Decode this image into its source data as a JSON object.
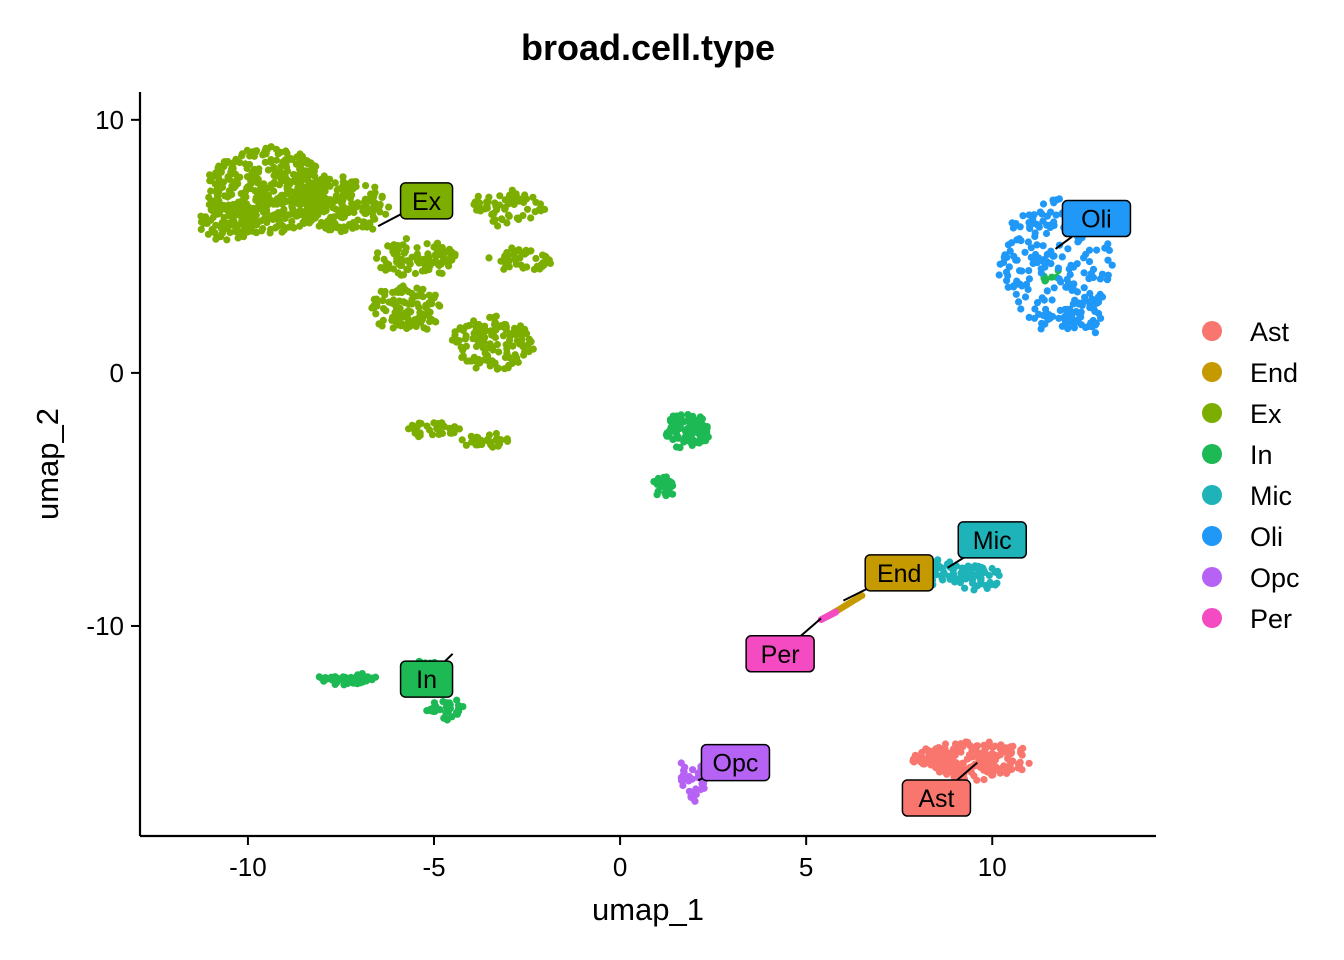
{
  "chart_data": {
    "type": "scatter",
    "title": "broad.cell.type",
    "xlabel": "umap_1",
    "ylabel": "umap_2",
    "xlim": [
      -12.9,
      14.4
    ],
    "ylim": [
      -18.3,
      11.1
    ],
    "x_ticks": [
      -10,
      -5,
      0,
      5,
      10
    ],
    "x_tick_labels": [
      "-10",
      "-5",
      "0",
      "5",
      "10"
    ],
    "y_ticks": [
      10,
      0,
      -10
    ],
    "y_tick_labels": [
      "10",
      "0",
      "-10"
    ],
    "grid": false,
    "legend_position": "right",
    "series": [
      {
        "name": "Ast",
        "color": "#F8766D",
        "label_pos": [
          8.5,
          -16.8
        ],
        "label_anchor": [
          9.6,
          -15.4
        ],
        "blobs": [
          [
            9.6,
            -15.3,
            1.4,
            0.75,
            1.0
          ],
          [
            8.4,
            -15.2,
            0.6,
            0.4,
            0.3
          ]
        ]
      },
      {
        "name": "End",
        "color": "#C49A00",
        "label_pos": [
          7.5,
          -7.9
        ],
        "label_anchor": [
          6.0,
          -9.0
        ],
        "blobs": [],
        "line": [
          [
            5.6,
            -9.6
          ],
          [
            6.5,
            -8.8
          ]
        ]
      },
      {
        "name": "Ex",
        "color": "#53B400",
        "label_pos": [
          -5.2,
          6.8
        ],
        "label_anchor": [
          -6.5,
          5.8
        ],
        "blobs": [
          [
            -9.5,
            7.2,
            1.6,
            1.7,
            2.4
          ],
          [
            -7.5,
            6.6,
            1.3,
            1.1,
            1.2
          ],
          [
            -10.5,
            6.0,
            0.8,
            0.8,
            0.5
          ],
          [
            -5.5,
            4.5,
            1.1,
            0.7,
            0.6
          ],
          [
            -5.8,
            2.5,
            1.0,
            0.9,
            0.7
          ],
          [
            -3.4,
            1.2,
            1.1,
            1.1,
            0.8
          ],
          [
            -3.0,
            6.5,
            1.0,
            0.6,
            0.4
          ],
          [
            -2.7,
            4.5,
            0.9,
            0.4,
            0.3
          ],
          [
            -5.0,
            -2.2,
            0.7,
            0.3,
            0.2
          ],
          [
            -3.6,
            -2.7,
            0.6,
            0.3,
            0.2
          ]
        ]
      },
      {
        "name": "In",
        "color": "#00C094",
        "label_pos": [
          -5.2,
          -12.1
        ],
        "label_anchor": [
          -4.5,
          -11.1
        ],
        "blobs": [
          [
            1.8,
            -2.3,
            0.6,
            0.7,
            0.6
          ],
          [
            1.2,
            -4.5,
            0.3,
            0.4,
            0.2
          ],
          [
            -7.3,
            -12.1,
            0.8,
            0.18,
            0.3
          ],
          [
            -5.3,
            -11.8,
            0.5,
            0.45,
            0.3
          ],
          [
            -4.7,
            -13.3,
            0.5,
            0.35,
            0.2
          ],
          [
            11.8,
            3.6,
            0.5,
            0.5,
            0.05
          ]
        ]
      },
      {
        "name": "Mic",
        "color": "#00B6EB",
        "label_pos": [
          10.0,
          -6.6
        ],
        "label_anchor": [
          8.8,
          -7.7
        ],
        "blobs": [
          [
            8.4,
            -7.9,
            1.2,
            0.5,
            0.6
          ],
          [
            9.6,
            -8.1,
            0.7,
            0.5,
            0.3
          ]
        ]
      },
      {
        "name": "Oli",
        "color": "#A58AFF",
        "label_pos": [
          12.8,
          6.1
        ],
        "label_anchor": [
          11.7,
          4.9
        ],
        "blobs": [
          [
            11.7,
            4.3,
            1.5,
            2.6,
            1.2
          ],
          [
            12.4,
            2.3,
            0.6,
            0.7,
            0.3
          ]
        ]
      },
      {
        "name": "Opc",
        "color": "#FB61D7",
        "label_pos": [
          3.1,
          -15.4
        ],
        "label_anchor": [
          2.1,
          -16.1
        ],
        "blobs": [
          [
            1.95,
            -16.1,
            0.35,
            0.8,
            0.25
          ]
        ]
      },
      {
        "name": "Per",
        "color": "#FF61C3",
        "label_pos": [
          4.3,
          -11.1
        ],
        "label_anchor": [
          5.4,
          -9.7
        ],
        "blobs": [],
        "line": [
          [
            5.4,
            -9.75
          ],
          [
            5.8,
            -9.45
          ]
        ]
      }
    ]
  },
  "legend": {
    "items": [
      {
        "label": "Ast",
        "color": "#F8766D"
      },
      {
        "label": "End",
        "color": "#C49A00"
      },
      {
        "label": "Ex",
        "color": "#7CAE00"
      },
      {
        "label": "In",
        "color": "#1DB954"
      },
      {
        "label": "Mic",
        "color": "#1DB3B9"
      },
      {
        "label": "Oli",
        "color": "#1F98F7"
      },
      {
        "label": "Opc",
        "color": "#B662F5"
      },
      {
        "label": "Per",
        "color": "#F44BC3"
      }
    ]
  }
}
